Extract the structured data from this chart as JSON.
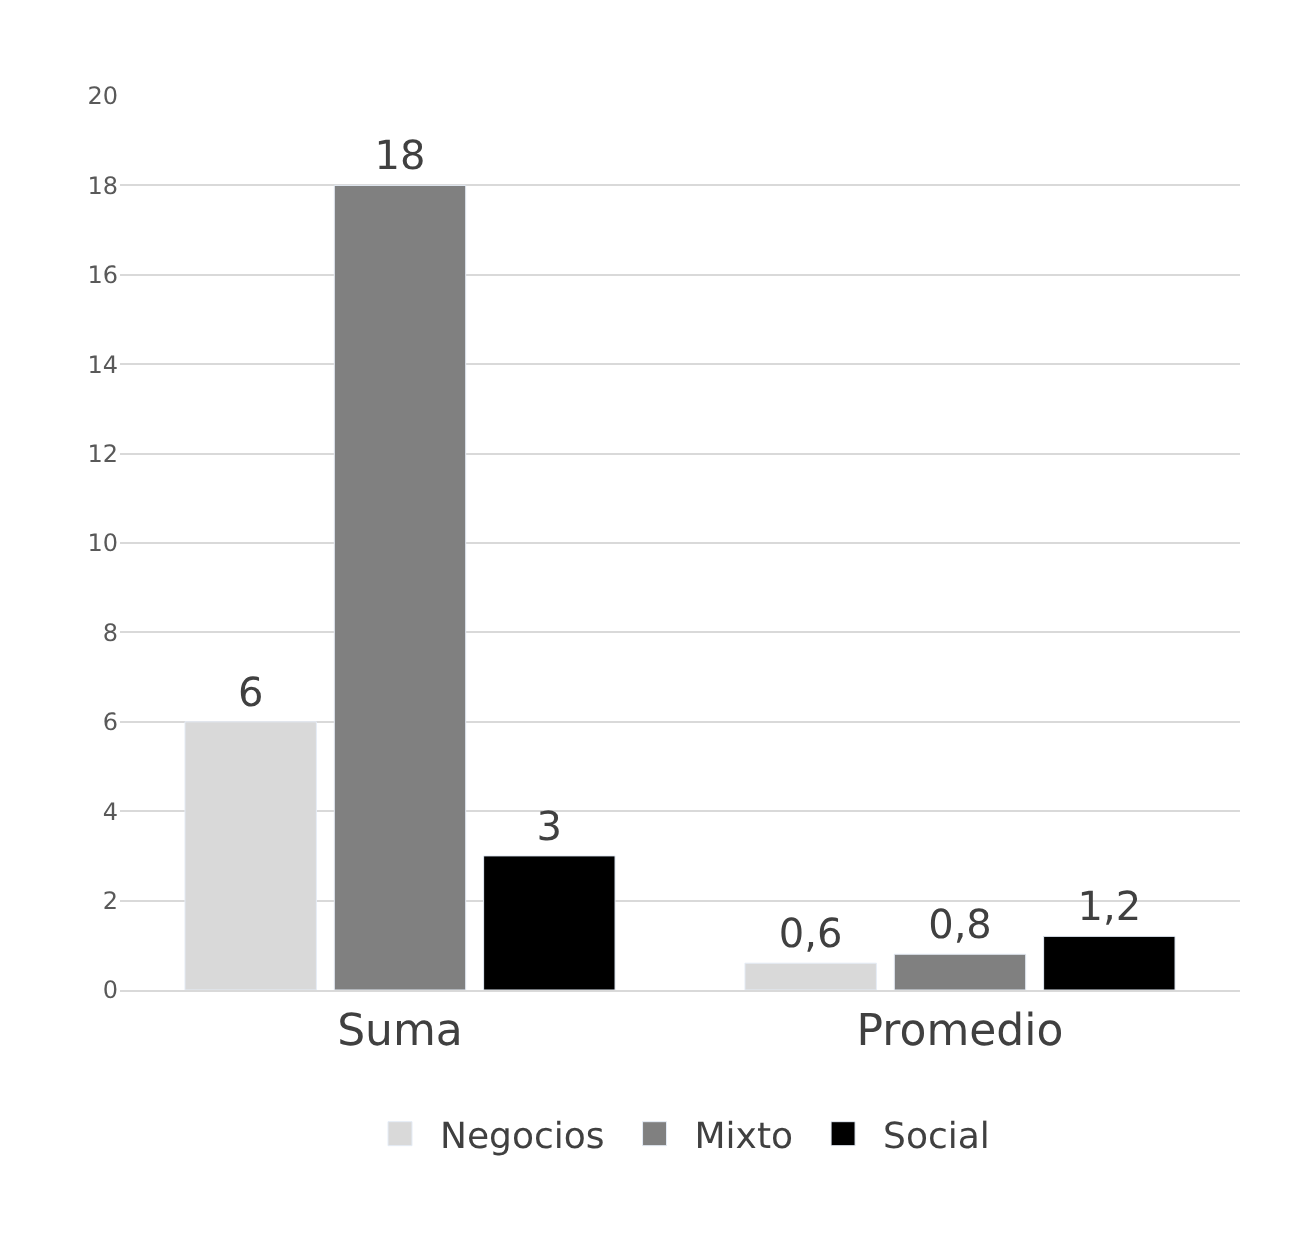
{
  "chart_data": {
    "type": "bar",
    "categories": [
      "Suma",
      "Promedio"
    ],
    "series": [
      {
        "name": "Negocios",
        "color": "#d9d9d9",
        "values": [
          6,
          0.6
        ],
        "value_labels": [
          "6",
          "0,6"
        ]
      },
      {
        "name": "Mixto",
        "color": "#808080",
        "values": [
          18,
          0.8
        ],
        "value_labels": [
          "18",
          "0,8"
        ]
      },
      {
        "name": "Social",
        "color": "#000000",
        "values": [
          3,
          1.2
        ],
        "value_labels": [
          "3",
          "1,2"
        ]
      }
    ],
    "ylim": [
      0,
      20
    ],
    "yticks": [
      0,
      2,
      4,
      6,
      8,
      10,
      12,
      14,
      16,
      18,
      20
    ],
    "grid": "y",
    "legend": "bottom"
  }
}
